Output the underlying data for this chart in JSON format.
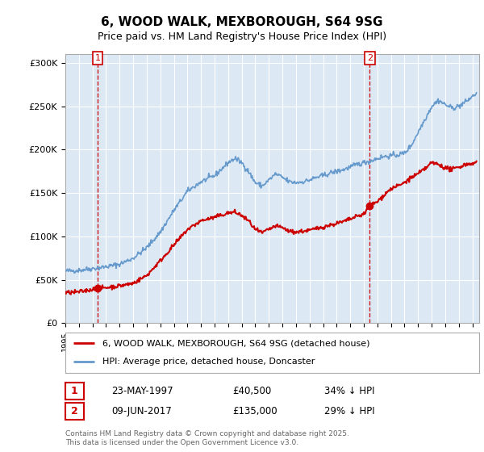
{
  "title": "6, WOOD WALK, MEXBOROUGH, S64 9SG",
  "subtitle": "Price paid vs. HM Land Registry's House Price Index (HPI)",
  "xlim_start": 1995.0,
  "xlim_end": 2025.5,
  "ylim_min": 0,
  "ylim_max": 310000,
  "yticks": [
    0,
    50000,
    100000,
    150000,
    200000,
    250000,
    300000
  ],
  "ytick_labels": [
    "£0",
    "£50K",
    "£100K",
    "£150K",
    "£200K",
    "£250K",
    "£300K"
  ],
  "sale1_x": 1997.388,
  "sale1_y": 40500,
  "sale1_label": "1",
  "sale2_x": 2017.44,
  "sale2_y": 135000,
  "sale2_label": "2",
  "sale1_date": "23-MAY-1997",
  "sale1_price": "£40,500",
  "sale1_hpi": "34% ↓ HPI",
  "sale2_date": "09-JUN-2017",
  "sale2_price": "£135,000",
  "sale2_hpi": "29% ↓ HPI",
  "legend_line1": "6, WOOD WALK, MEXBOROUGH, S64 9SG (detached house)",
  "legend_line2": "HPI: Average price, detached house, Doncaster",
  "footer": "Contains HM Land Registry data © Crown copyright and database right 2025.\nThis data is licensed under the Open Government Licence v3.0.",
  "red_color": "#cc0000",
  "blue_color": "#6699cc",
  "plot_bg_color": "#dce9f5",
  "bg_color": "#ffffff",
  "grid_color": "#ffffff"
}
